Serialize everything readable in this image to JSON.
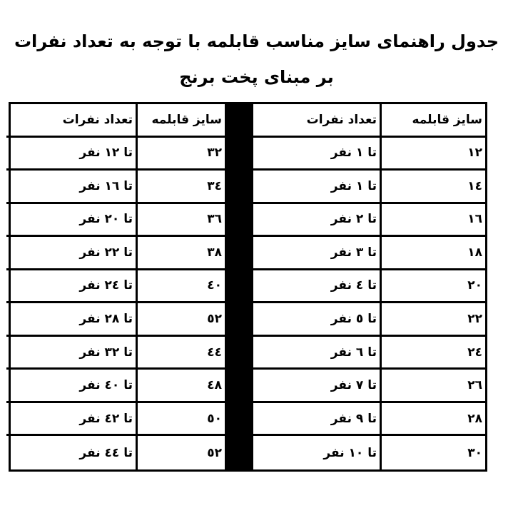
{
  "title": {
    "line1": "جدول راهنمای سایز  مناسب قابلمه  با توجه به تعداد نفرات",
    "line2": "بر مبنای پخت برنج"
  },
  "headers": {
    "size": "سایز قابلمه",
    "people": "تعداد نفرات"
  },
  "right_table": [
    {
      "size": "١٢",
      "people": "تا ١ نفر"
    },
    {
      "size": "١٤",
      "people": "تا ١ نفر"
    },
    {
      "size": "١٦",
      "people": "تا ٢ نفر"
    },
    {
      "size": "١٨",
      "people": "تا ٣ نفر"
    },
    {
      "size": "٢٠",
      "people": "تا ٤ نفر"
    },
    {
      "size": "٢٢",
      "people": "تا ٥ نفر"
    },
    {
      "size": "٢٤",
      "people": "تا ٦ نفر"
    },
    {
      "size": "٢٦",
      "people": "تا ٧ نفر"
    },
    {
      "size": "٢٨",
      "people": "تا ٩ نفر"
    },
    {
      "size": "٣٠",
      "people": "تا ١٠ نفر"
    }
  ],
  "left_table": [
    {
      "size": "٣٢",
      "people": "تا ١٢ نفر"
    },
    {
      "size": "٣٤",
      "people": "تا ١٦ نفر"
    },
    {
      "size": "٣٦",
      "people": "تا ٢٠ نفر"
    },
    {
      "size": "٣٨",
      "people": "تا ٢٢ نفر"
    },
    {
      "size": "٤٠",
      "people": "تا ٢٤ نفر"
    },
    {
      "size": "٥٢",
      "people": "تا ٢٨ نفر"
    },
    {
      "size": "٤٤",
      "people": "تا ٣٢ نفر"
    },
    {
      "size": "٤٨",
      "people": "تا ٤٠ نفر"
    },
    {
      "size": "٥٠",
      "people": "تا ٤٢ نفر"
    },
    {
      "size": "٥٢",
      "people": "تا ٤٤ نفر"
    }
  ]
}
